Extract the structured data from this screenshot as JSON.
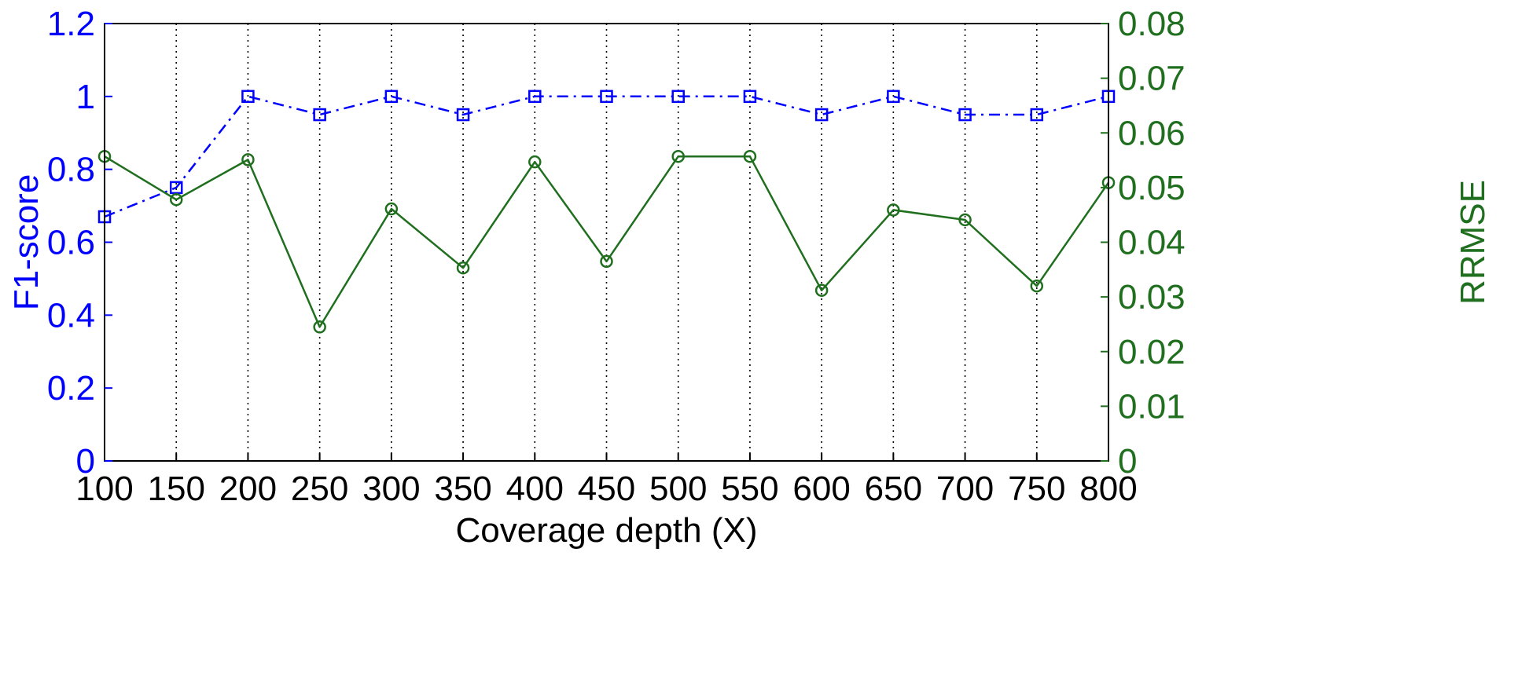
{
  "chart_data": {
    "type": "line",
    "xlabel": "Coverage depth (X)",
    "ylabel_left": "F1-score",
    "ylabel_right": "RRMSE",
    "x": [
      100,
      150,
      200,
      250,
      300,
      350,
      400,
      450,
      500,
      550,
      600,
      650,
      700,
      750,
      800
    ],
    "xlim": [
      100,
      800
    ],
    "ylim_left": [
      0,
      1.2
    ],
    "ylim_right": [
      0,
      0.08
    ],
    "x_ticks": [
      "100",
      "150",
      "200",
      "250",
      "300",
      "350",
      "400",
      "450",
      "500",
      "550",
      "600",
      "650",
      "700",
      "750",
      "800"
    ],
    "y_ticks_left": [
      "0",
      "0.2",
      "0.4",
      "0.6",
      "0.8",
      "1",
      "1.2"
    ],
    "y_ticks_right": [
      "0",
      "0.01",
      "0.02",
      "0.03",
      "0.04",
      "0.05",
      "0.06",
      "0.07",
      "0.08"
    ],
    "grid": "vertical dotted",
    "series": [
      {
        "axis": "left",
        "color": "#0000ff",
        "line_style": "dash-dot",
        "marker": "square",
        "values": [
          0.67,
          0.75,
          1.0,
          0.95,
          1.0,
          0.95,
          1.0,
          1.0,
          1.0,
          1.0,
          0.95,
          1.0,
          0.95,
          0.95,
          1.0
        ]
      },
      {
        "axis": "right",
        "color": "#1f6f1f",
        "line_style": "solid",
        "marker": "circle",
        "values": [
          0.0557,
          0.0478,
          0.0551,
          0.0245,
          0.0461,
          0.0353,
          0.0547,
          0.0365,
          0.0557,
          0.0557,
          0.0312,
          0.0459,
          0.0441,
          0.032,
          0.0509
        ]
      }
    ],
    "colors": {
      "left_axis": "#0000ff",
      "right_axis": "#1f6f1f",
      "frame": "#000000"
    }
  }
}
